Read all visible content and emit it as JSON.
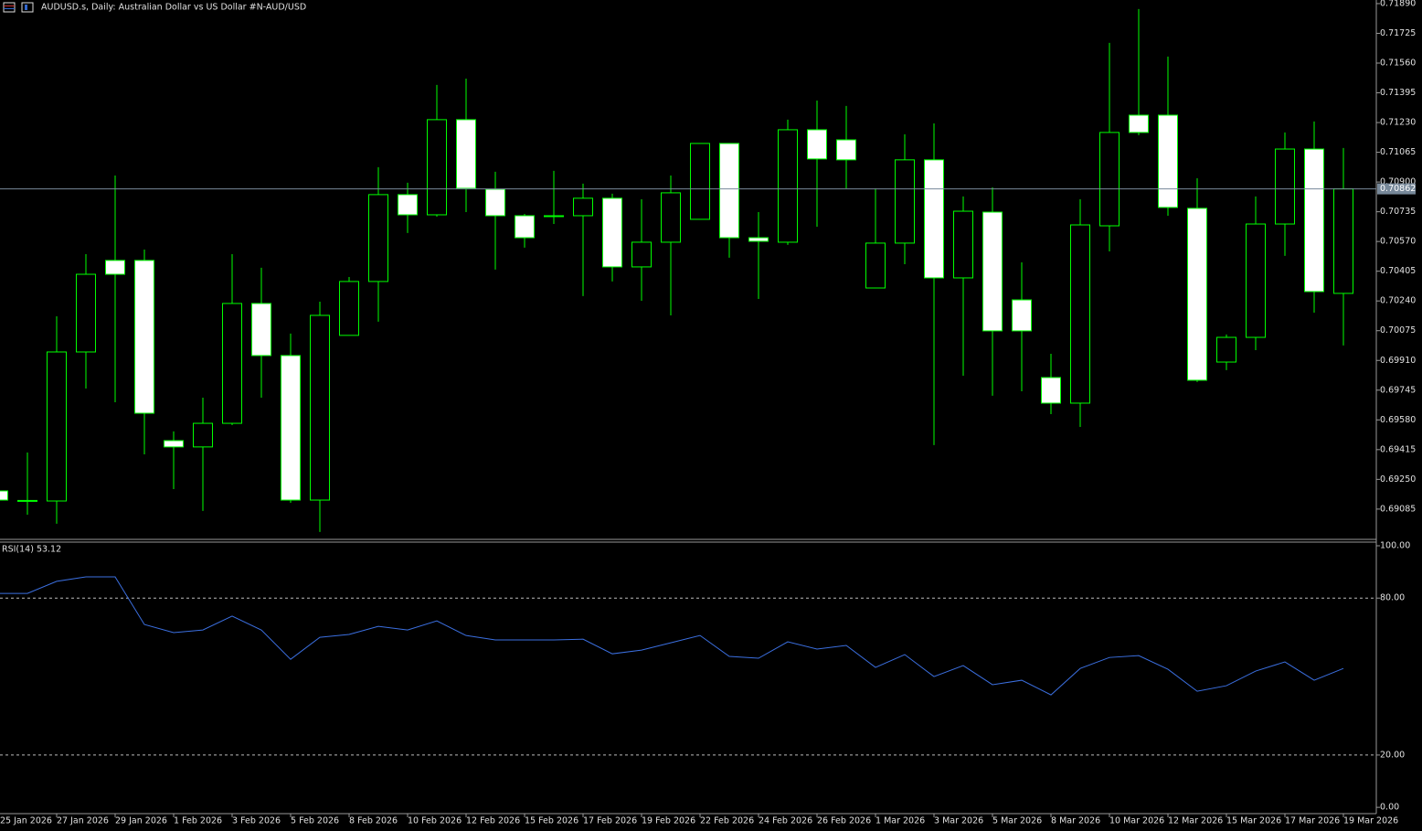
{
  "chart_data": [
    {
      "type": "candlestick",
      "title": "AUDUSD.s, Daily:  Australian Dollar vs US Dollar #N-AUD/USD",
      "categories": [
        "25 Jan 2026",
        null,
        "27 Jan 2026",
        null,
        "29 Jan 2026",
        null,
        "1 Feb 2026",
        null,
        "3 Feb 2026",
        null,
        "5 Feb 2026",
        null,
        "8 Feb 2026",
        null,
        "10 Feb 2026",
        null,
        "12 Feb 2026",
        null,
        "15 Feb 2026",
        null,
        "17 Feb 2026",
        null,
        "19 Feb 2026",
        null,
        "22 Feb 2026",
        null,
        "24 Feb 2026",
        null,
        "26 Feb 2026",
        null,
        "1 Mar 2026",
        null,
        "3 Mar 2026",
        null,
        "5 Mar 2026",
        null,
        "8 Mar 2026",
        null,
        "10 Mar 2026",
        null,
        "12 Mar 2026",
        null,
        "15 Mar 2026",
        null,
        "17 Mar 2026",
        null,
        "19 Mar 2026"
      ],
      "open": [
        0.69186,
        0.69128,
        0.6913,
        0.69957,
        0.70465,
        0.70465,
        0.69465,
        0.6943,
        0.69561,
        0.70226,
        0.69937,
        0.69135,
        0.70049,
        0.70348,
        0.7083,
        0.70718,
        0.71246,
        0.7086,
        0.70713,
        0.70708,
        0.70713,
        0.7081,
        0.70429,
        0.70566,
        0.70693,
        0.71114,
        0.70591,
        0.70566,
        0.7119,
        0.71134,
        0.70312,
        0.70561,
        0.71023,
        0.70368,
        0.70733,
        0.70246,
        0.69815,
        0.69673,
        0.70657,
        0.71271,
        0.71271,
        0.70754,
        0.69901,
        0.70038,
        0.70667,
        0.71083,
        0.70282
      ],
      "high": [
        0.69222,
        0.69399,
        0.70155,
        0.705,
        0.70936,
        0.70525,
        0.69516,
        0.69703,
        0.705,
        0.70424,
        0.70059,
        0.70236,
        0.70373,
        0.70982,
        0.70896,
        0.71439,
        0.71474,
        0.70957,
        0.70723,
        0.70962,
        0.70891,
        0.70835,
        0.70804,
        0.70936,
        0.71114,
        0.71114,
        0.70733,
        0.71246,
        0.71352,
        0.71322,
        0.70865,
        0.71165,
        0.71225,
        0.7082,
        0.7087,
        0.70454,
        0.69947,
        0.70804,
        0.71672,
        0.7186,
        0.71596,
        0.70921,
        0.70054,
        0.7082,
        0.71175,
        0.71236,
        0.71089
      ],
      "low": [
        0.6911,
        0.69054,
        0.69004,
        0.69754,
        0.69678,
        0.69389,
        0.69196,
        0.69075,
        0.69551,
        0.69703,
        0.6912,
        0.68958,
        0.70049,
        0.70125,
        0.70617,
        0.70708,
        0.70733,
        0.70414,
        0.70536,
        0.70667,
        0.70267,
        0.70348,
        0.70241,
        0.7016,
        0.70693,
        0.7048,
        0.70251,
        0.70551,
        0.70652,
        0.70865,
        0.70312,
        0.70444,
        0.6944,
        0.69825,
        0.69714,
        0.69739,
        0.69612,
        0.69541,
        0.70515,
        0.7116,
        0.70713,
        0.6979,
        0.69856,
        0.69967,
        0.7049,
        0.70175,
        0.69993
      ],
      "close": [
        0.69135,
        0.69133,
        0.69957,
        0.70388,
        0.70388,
        0.69617,
        0.6943,
        0.69561,
        0.70226,
        0.69937,
        0.69135,
        0.7016,
        0.70348,
        0.7083,
        0.70718,
        0.71246,
        0.70865,
        0.70713,
        0.70591,
        0.70713,
        0.7081,
        0.70429,
        0.70566,
        0.7084,
        0.71114,
        0.70591,
        0.70571,
        0.7119,
        0.71028,
        0.71023,
        0.70561,
        0.71023,
        0.70368,
        0.70738,
        0.70074,
        0.70074,
        0.69673,
        0.70662,
        0.71175,
        0.71175,
        0.70759,
        0.698,
        0.70038,
        0.70667,
        0.71083,
        0.70292,
        0.70862
      ],
      "up_color": "#000000",
      "down_color": "#ffffff",
      "outline_color": "#00ff00",
      "current_price": {
        "value": 0.70862,
        "label": "0.70862"
      },
      "ylim": [
        0.68917,
        0.7191
      ],
      "yticks": [
        {
          "value": 0.7189,
          "label": "0.71890"
        },
        {
          "value": 0.71725,
          "label": "0.71725"
        },
        {
          "value": 0.7156,
          "label": "0.71560"
        },
        {
          "value": 0.71395,
          "label": "0.71395"
        },
        {
          "value": 0.7123,
          "label": "0.71230"
        },
        {
          "value": 0.71065,
          "label": "0.71065"
        },
        {
          "value": 0.709,
          "label": "0.70900"
        },
        {
          "value": 0.70735,
          "label": "0.70735"
        },
        {
          "value": 0.7057,
          "label": "0.70570"
        },
        {
          "value": 0.70405,
          "label": "0.70405"
        },
        {
          "value": 0.7024,
          "label": "0.70240"
        },
        {
          "value": 0.70075,
          "label": "0.70075"
        },
        {
          "value": 0.6991,
          "label": "0.69910"
        },
        {
          "value": 0.69745,
          "label": "0.69745"
        },
        {
          "value": 0.6958,
          "label": "0.69580"
        },
        {
          "value": 0.69415,
          "label": "0.69415"
        },
        {
          "value": 0.6925,
          "label": "0.69250"
        },
        {
          "value": 0.69085,
          "label": "0.69085"
        }
      ]
    },
    {
      "type": "line",
      "title": "RSI(14) 53.12",
      "values": [
        81.8,
        81.8,
        86.4,
        88.1,
        88.1,
        69.9,
        66.8,
        67.8,
        73.1,
        67.8,
        56.6,
        65.0,
        66.1,
        69.2,
        67.8,
        71.3,
        65.7,
        64.0,
        64.0,
        64.0,
        64.3,
        58.7,
        60.1,
        62.9,
        65.7,
        57.7,
        57.0,
        63.3,
        60.5,
        61.9,
        53.5,
        58.4,
        50.0,
        54.2,
        46.9,
        48.6,
        43.0,
        53.1,
        57.3,
        58.0,
        52.8,
        44.4,
        46.5,
        52.1,
        55.6,
        48.6,
        53.1
      ],
      "color": "#3b6fe0",
      "ylim": [
        -2.4,
        101.4
      ],
      "yticks": [
        {
          "value": 100,
          "label": "100.00"
        },
        {
          "value": 80,
          "label": "80.00"
        },
        {
          "value": 20,
          "label": "20.00"
        },
        {
          "value": 0,
          "label": "0.00"
        }
      ],
      "levels": [
        80,
        20
      ]
    }
  ]
}
